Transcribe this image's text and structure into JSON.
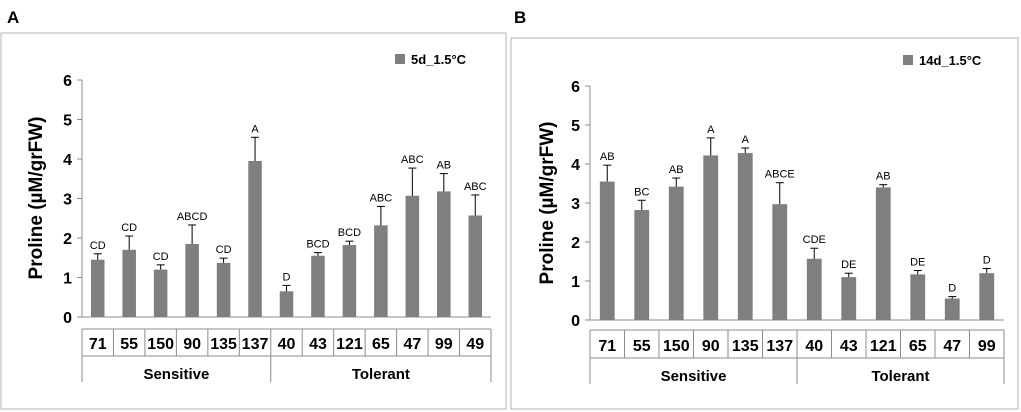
{
  "chart_data": [
    {
      "panel": "A",
      "type": "bar",
      "legend": "5d_1.5°C",
      "ylabel": "Proline (µM/grFW)",
      "ylim": [
        0,
        6
      ],
      "yticks": [
        "0",
        "1",
        "2",
        "3",
        "4",
        "5",
        "6"
      ],
      "categories": [
        "71",
        "55",
        "150",
        "90",
        "135",
        "137",
        "40",
        "43",
        "121",
        "65",
        "47",
        "99",
        "49"
      ],
      "values": [
        1.45,
        1.7,
        1.2,
        1.85,
        1.37,
        3.95,
        0.65,
        1.55,
        1.82,
        2.32,
        3.07,
        3.18,
        2.57
      ],
      "errors": [
        0.15,
        0.35,
        0.12,
        0.48,
        0.12,
        0.6,
        0.15,
        0.08,
        0.1,
        0.48,
        0.7,
        0.45,
        0.52
      ],
      "letters": [
        "CD",
        "CD",
        "CD",
        "ABCD",
        "CD",
        "A",
        "D",
        "BCD",
        "BCD",
        "ABC",
        "ABC",
        "AB",
        "ABC"
      ],
      "groups": [
        {
          "label": "Sensitive",
          "count": 6
        },
        {
          "label": "Tolerant",
          "count": 7
        }
      ]
    },
    {
      "panel": "B",
      "type": "bar",
      "legend": "14d_1.5°C",
      "ylabel": "Proline (µM/grFW)",
      "ylim": [
        0,
        6
      ],
      "yticks": [
        "0",
        "1",
        "2",
        "3",
        "4",
        "5",
        "6"
      ],
      "categories": [
        "71",
        "55",
        "150",
        "90",
        "135",
        "137",
        "40",
        "43",
        "121",
        "65",
        "47",
        "99"
      ],
      "values": [
        3.55,
        2.82,
        3.42,
        4.22,
        4.28,
        2.97,
        1.57,
        1.1,
        3.4,
        1.17,
        0.55,
        1.2
      ],
      "errors": [
        0.42,
        0.25,
        0.22,
        0.45,
        0.13,
        0.55,
        0.27,
        0.1,
        0.07,
        0.1,
        0.05,
        0.12
      ],
      "letters": [
        "AB",
        "BC",
        "AB",
        "A",
        "A",
        "ABCE",
        "CDE",
        "DE",
        "AB",
        "DE",
        "D",
        "D"
      ],
      "groups": [
        {
          "label": "Sensitive",
          "count": 6
        },
        {
          "label": "Tolerant",
          "count": 6
        }
      ]
    }
  ]
}
